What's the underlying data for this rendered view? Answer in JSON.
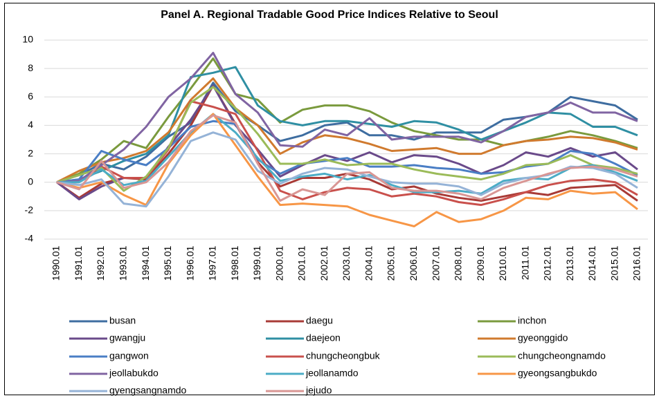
{
  "chart_data": {
    "type": "line",
    "title": "Panel A. Regional Tradable Good Price Indices Relative to Seoul",
    "categories": [
      "1990.01",
      "1991.01",
      "1992.01",
      "1993.01",
      "1994.01",
      "1995.01",
      "1996.01",
      "1997.01",
      "1998.01",
      "1999.01",
      "2000.01",
      "2001.01",
      "2002.01",
      "2003.01",
      "2004.01",
      "2005.01",
      "2006.01",
      "2007.01",
      "2008.01",
      "2009.01",
      "2010.01",
      "2011.01",
      "2012.01",
      "2013.01",
      "2014.01",
      "2015.01",
      "2016.01"
    ],
    "ylim": [
      -4,
      10
    ],
    "yticks": [
      -4,
      -2,
      0,
      2,
      4,
      6,
      8,
      10
    ],
    "grid": true,
    "series": [
      {
        "name": "busan",
        "color": "#3e6da0",
        "values": [
          0,
          0.5,
          1.3,
          0.9,
          1.8,
          3.2,
          4.2,
          7.0,
          5.0,
          4.0,
          2.9,
          3.3,
          4.0,
          4.2,
          3.3,
          3.3,
          3.0,
          3.5,
          3.5,
          3.5,
          4.4,
          4.6,
          4.9,
          6.0,
          5.7,
          5.4,
          4.4
        ]
      },
      {
        "name": "daegu",
        "color": "#a83a36",
        "values": [
          0,
          -1.1,
          -0.1,
          0.3,
          0.2,
          2.0,
          4.0,
          6.8,
          4.1,
          1.4,
          -0.3,
          0.3,
          0.3,
          0.6,
          0.2,
          -0.5,
          -0.3,
          -0.8,
          -1.1,
          -1.3,
          -1.0,
          -0.7,
          -0.9,
          -0.4,
          -0.3,
          -0.2,
          -1.3
        ]
      },
      {
        "name": "inchon",
        "color": "#7a9a3d",
        "values": [
          0,
          0.6,
          1.6,
          2.9,
          2.4,
          4.6,
          6.6,
          8.7,
          6.2,
          5.8,
          4.2,
          5.1,
          5.4,
          5.4,
          5.0,
          4.2,
          3.6,
          3.3,
          3.0,
          3.0,
          2.6,
          2.9,
          3.2,
          3.6,
          3.3,
          2.9,
          2.4
        ]
      },
      {
        "name": "gwangju",
        "color": "#6a4a8a",
        "values": [
          0,
          -1.2,
          -0.3,
          0.3,
          0.3,
          2.5,
          4.4,
          6.8,
          4.0,
          2.3,
          0.4,
          1.2,
          1.9,
          1.5,
          2.1,
          1.4,
          1.9,
          1.8,
          1.3,
          0.6,
          1.2,
          2.1,
          1.8,
          2.4,
          1.8,
          2.1,
          0.9
        ]
      },
      {
        "name": "daejeon",
        "color": "#2f8fa3",
        "values": [
          0,
          0.2,
          0.8,
          1.5,
          2.0,
          3.3,
          7.4,
          7.7,
          8.1,
          5.4,
          4.3,
          4.0,
          4.3,
          4.3,
          4.1,
          3.9,
          4.3,
          4.2,
          3.7,
          3.0,
          3.6,
          4.2,
          4.9,
          4.8,
          3.9,
          3.9,
          3.3
        ]
      },
      {
        "name": "gyeonggido",
        "color": "#d07a2e",
        "values": [
          0,
          0.8,
          1.4,
          1.7,
          2.2,
          3.5,
          5.8,
          7.3,
          5.2,
          4.0,
          2.0,
          2.8,
          3.3,
          3.1,
          2.7,
          2.2,
          2.3,
          2.4,
          2.0,
          2.0,
          2.6,
          2.9,
          3.0,
          3.2,
          3.1,
          2.8,
          2.3
        ]
      },
      {
        "name": "gangwon",
        "color": "#4a7ec5",
        "values": [
          0,
          0.2,
          2.2,
          1.6,
          1.2,
          2.4,
          3.9,
          4.3,
          4.1,
          1.6,
          0.6,
          1.3,
          1.5,
          1.7,
          1.1,
          1.1,
          1.2,
          1.0,
          0.9,
          0.6,
          0.7,
          1.1,
          1.3,
          2.2,
          2.0,
          1.3,
          0.5
        ]
      },
      {
        "name": "chungcheongbuk",
        "color": "#c9504c",
        "values": [
          0,
          0,
          1.1,
          0.3,
          0.3,
          2.3,
          5.7,
          5.3,
          4.8,
          2.2,
          -0.6,
          -1.2,
          -0.7,
          -0.4,
          -0.5,
          -1.0,
          -0.8,
          -1.0,
          -1.4,
          -1.6,
          -1.2,
          -0.7,
          -0.2,
          0.1,
          0.2,
          0.0,
          -0.9
        ]
      },
      {
        "name": "chungcheongnamdo",
        "color": "#9bbb59",
        "values": [
          0,
          0.5,
          1.0,
          -0.6,
          0.4,
          2.4,
          5.6,
          6.7,
          5.2,
          3.4,
          1.3,
          1.3,
          1.6,
          1.2,
          1.3,
          1.3,
          0.9,
          0.6,
          0.4,
          0.2,
          0.6,
          1.2,
          1.3,
          1.9,
          1.2,
          1.0,
          0.6
        ]
      },
      {
        "name": "jeollabukdo",
        "color": "#8064a2",
        "values": [
          0,
          0.1,
          1.2,
          2.3,
          3.9,
          6.0,
          7.3,
          9.1,
          6.2,
          4.9,
          2.6,
          2.5,
          3.7,
          3.3,
          4.5,
          3.0,
          3.2,
          3.2,
          3.2,
          2.8,
          3.6,
          4.6,
          4.9,
          5.6,
          4.9,
          4.9,
          4.3
        ]
      },
      {
        "name": "jeollanamdo",
        "color": "#4bacc6",
        "values": [
          0,
          0,
          0.9,
          -0.2,
          0.1,
          1.8,
          3.5,
          4.8,
          3.5,
          1.7,
          0.1,
          0.4,
          0.6,
          0.2,
          0.5,
          -0.2,
          -0.7,
          -0.7,
          -0.6,
          -0.8,
          0.1,
          0.3,
          0.2,
          1.0,
          1.2,
          0.7,
          0.1
        ]
      },
      {
        "name": "gyeongsangbukdo",
        "color": "#f79646",
        "values": [
          0,
          -0.4,
          0,
          -0.9,
          -1.6,
          1.3,
          3.3,
          4.8,
          2.6,
          0.4,
          -1.6,
          -1.5,
          -1.6,
          -1.7,
          -2.3,
          -2.7,
          -3.1,
          -2.1,
          -2.8,
          -2.6,
          -2.0,
          -1.1,
          -1.2,
          -0.6,
          -0.8,
          -0.7,
          -1.9
        ]
      },
      {
        "name": "gyengsangnamdo",
        "color": "#95b3d7",
        "values": [
          0,
          -0.2,
          0.2,
          -1.5,
          -1.7,
          0.4,
          2.9,
          3.5,
          3.0,
          0.8,
          -0.1,
          0.6,
          1.0,
          0.9,
          0.4,
          0,
          -0.1,
          -0.1,
          -0.3,
          -0.9,
          -0.1,
          0.3,
          0.5,
          1.1,
          1.0,
          0.6,
          -0.4
        ]
      },
      {
        "name": "jejudo",
        "color": "#d99694",
        "values": [
          0,
          -0.5,
          1.5,
          -0.4,
          0.0,
          1.4,
          3.6,
          4.7,
          4.2,
          1.3,
          -1.3,
          -0.5,
          -0.9,
          0.6,
          0.7,
          -0.4,
          -0.6,
          -0.6,
          -0.8,
          -1.2,
          -0.4,
          0.1,
          0.6,
          1.0,
          1.1,
          0.9,
          0.4
        ]
      }
    ]
  }
}
